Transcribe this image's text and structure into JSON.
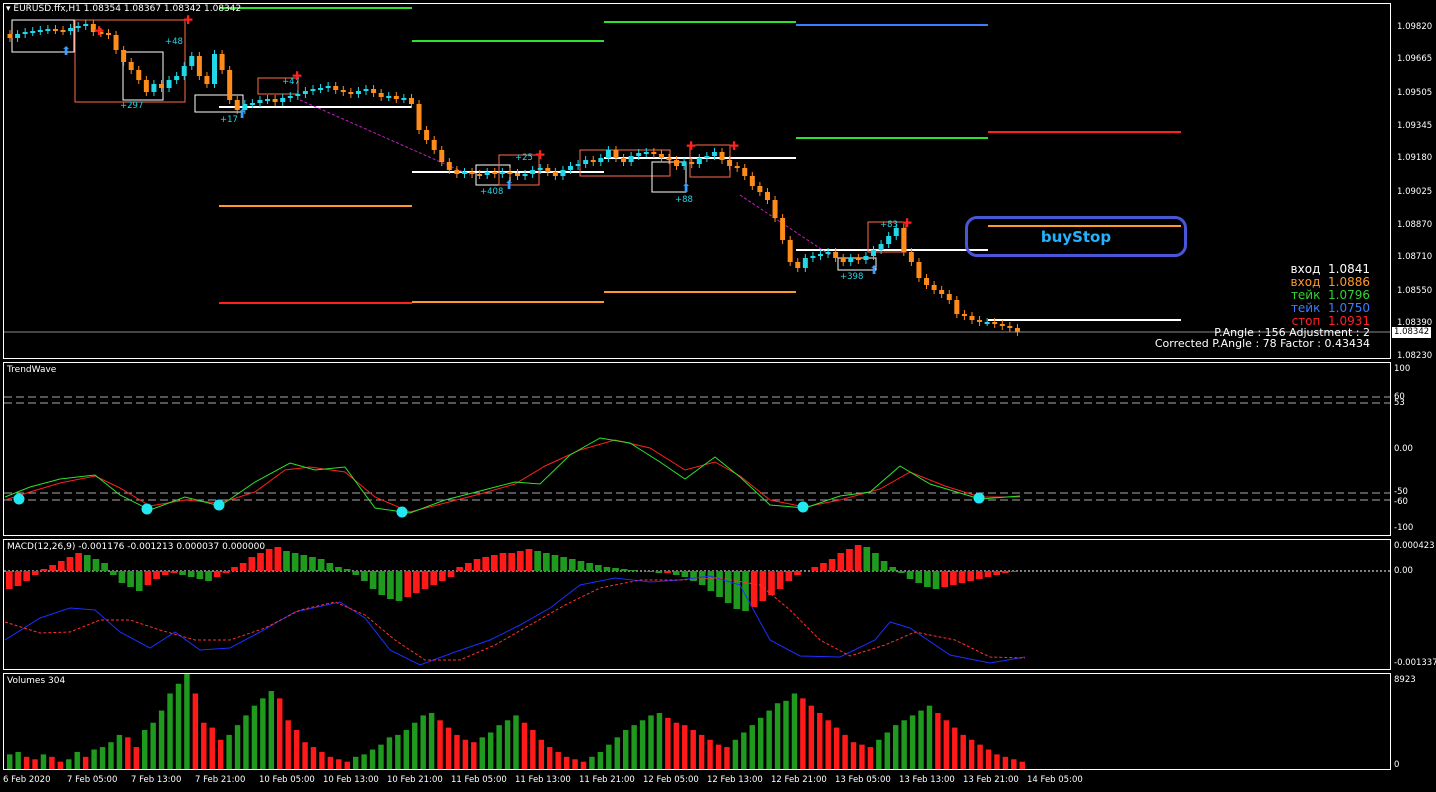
{
  "header": {
    "symbol_line": "EURUSD.ffx,H1  1.08354 1.08367 1.08342 1.08342",
    "current_price": "1.08342"
  },
  "price_axis": [
    "1.09820",
    "1.09665",
    "1.09505",
    "1.09345",
    "1.09180",
    "1.09025",
    "1.08870",
    "1.08710",
    "1.08550",
    "1.08390",
    "1.08230"
  ],
  "time_axis": [
    "6 Feb 2020",
    "7 Feb 05:00",
    "7 Feb 13:00",
    "7 Feb 21:00",
    "10 Feb 05:00",
    "10 Feb 13:00",
    "10 Feb 21:00",
    "11 Feb 05:00",
    "11 Feb 13:00",
    "11 Feb 21:00",
    "12 Feb 05:00",
    "12 Feb 13:00",
    "12 Feb 21:00",
    "13 Feb 05:00",
    "13 Feb 13:00",
    "13 Feb 21:00",
    "14 Feb 05:00"
  ],
  "signals": {
    "entry1": {
      "label": "вход",
      "value": "1.0841",
      "color": "#ffffff"
    },
    "entry2": {
      "label": "вход",
      "value": "1.0886",
      "color": "#ff9a2a"
    },
    "take1": {
      "label": "тейк",
      "value": "1.0796",
      "color": "#32d232"
    },
    "take2": {
      "label": "тейк",
      "value": "1.0750",
      "color": "#3a7dff"
    },
    "stop": {
      "label": "стоп",
      "value": "1.0931",
      "color": "#ff2020"
    }
  },
  "angle_info": {
    "line1": "P.Angle : 156   Adjustment : 2",
    "line2": "Corrected P.Angle : 78   Factor : 0.43434"
  },
  "order_badge": "buyStop",
  "trade_labels": [
    "+48",
    "+297",
    "+17",
    "+47",
    "+25",
    "+408",
    "+88",
    "+83",
    "+398"
  ],
  "trendwave": {
    "title": "TrendWave",
    "levels": [
      "100",
      "60",
      "53",
      "0.00",
      "-50",
      "-60",
      "-100"
    ]
  },
  "macd": {
    "title": "MACD(12,26,9) -0.001176 -0.001213 0.000037 0.000000",
    "levels": [
      "0.000423",
      "0.00",
      "-0.001337"
    ]
  },
  "volumes": {
    "title": "Volumes 304",
    "levels": [
      "8923",
      "0"
    ]
  },
  "colors": {
    "bull": "#22d7e8",
    "bear": "#ff8c1a",
    "macd_up": "#1f9a1f",
    "macd_down": "#ff1a1a",
    "accent_blue": "#4a56d8"
  }
}
